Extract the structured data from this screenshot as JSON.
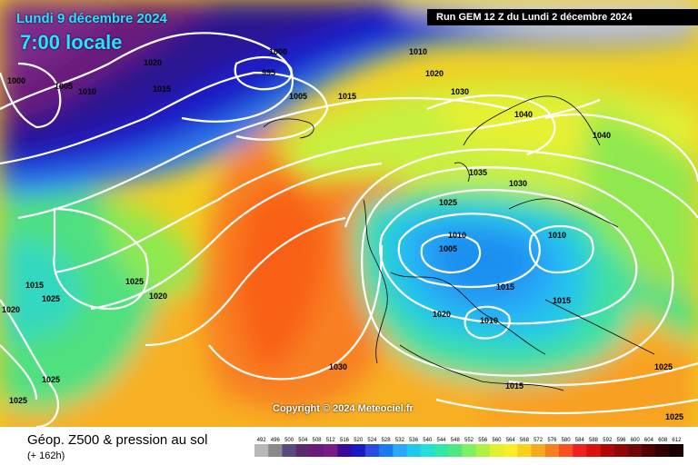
{
  "header": {
    "date": "Lundi 9 décembre 2024",
    "local_time": "7:00 locale",
    "run_info": "Run GEM 12 Z du Lundi 2 décembre 2024"
  },
  "copyright": "Copyright © 2024 Meteociel.fr",
  "footer": {
    "title": "Géop. Z500 & pression au sol",
    "lead_time": "(+ 162h)"
  },
  "isobar_labels": [
    "1000",
    "1005",
    "1010",
    "1015",
    "1020",
    "995",
    "1000",
    "1005",
    "1015",
    "1010",
    "1020",
    "1030",
    "1040",
    "1040",
    "1035",
    "1030",
    "1025",
    "1010",
    "1005",
    "1010",
    "1015",
    "1015",
    "1020",
    "1010",
    "1025",
    "1020",
    "1015",
    "1025",
    "1020",
    "1030",
    "1025",
    "1025",
    "1015",
    "1025",
    "1025"
  ],
  "legend": {
    "values": [
      "492",
      "496",
      "500",
      "504",
      "508",
      "512",
      "516",
      "520",
      "524",
      "528",
      "532",
      "536",
      "540",
      "544",
      "548",
      "552",
      "556",
      "560",
      "564",
      "568",
      "572",
      "576",
      "580",
      "584",
      "588",
      "592",
      "596",
      "600",
      "604",
      "608",
      "612"
    ],
    "colors": [
      "#b8b8b8",
      "#8a8a8a",
      "#5a4a7a",
      "#5a2a6a",
      "#6a1a7a",
      "#7a1a8a",
      "#3a0a9a",
      "#1a1ac8",
      "#2a4ae0",
      "#1a7af0",
      "#2aa8f8",
      "#20c8f0",
      "#20e0d8",
      "#30e8a8",
      "#50e880",
      "#80f060",
      "#b0f040",
      "#e0f030",
      "#f8f020",
      "#f8d020",
      "#f8a820",
      "#f88020",
      "#f85020",
      "#f02020",
      "#d81010",
      "#b00808",
      "#900808",
      "#700808",
      "#500000",
      "#300000",
      "#180000"
    ]
  }
}
